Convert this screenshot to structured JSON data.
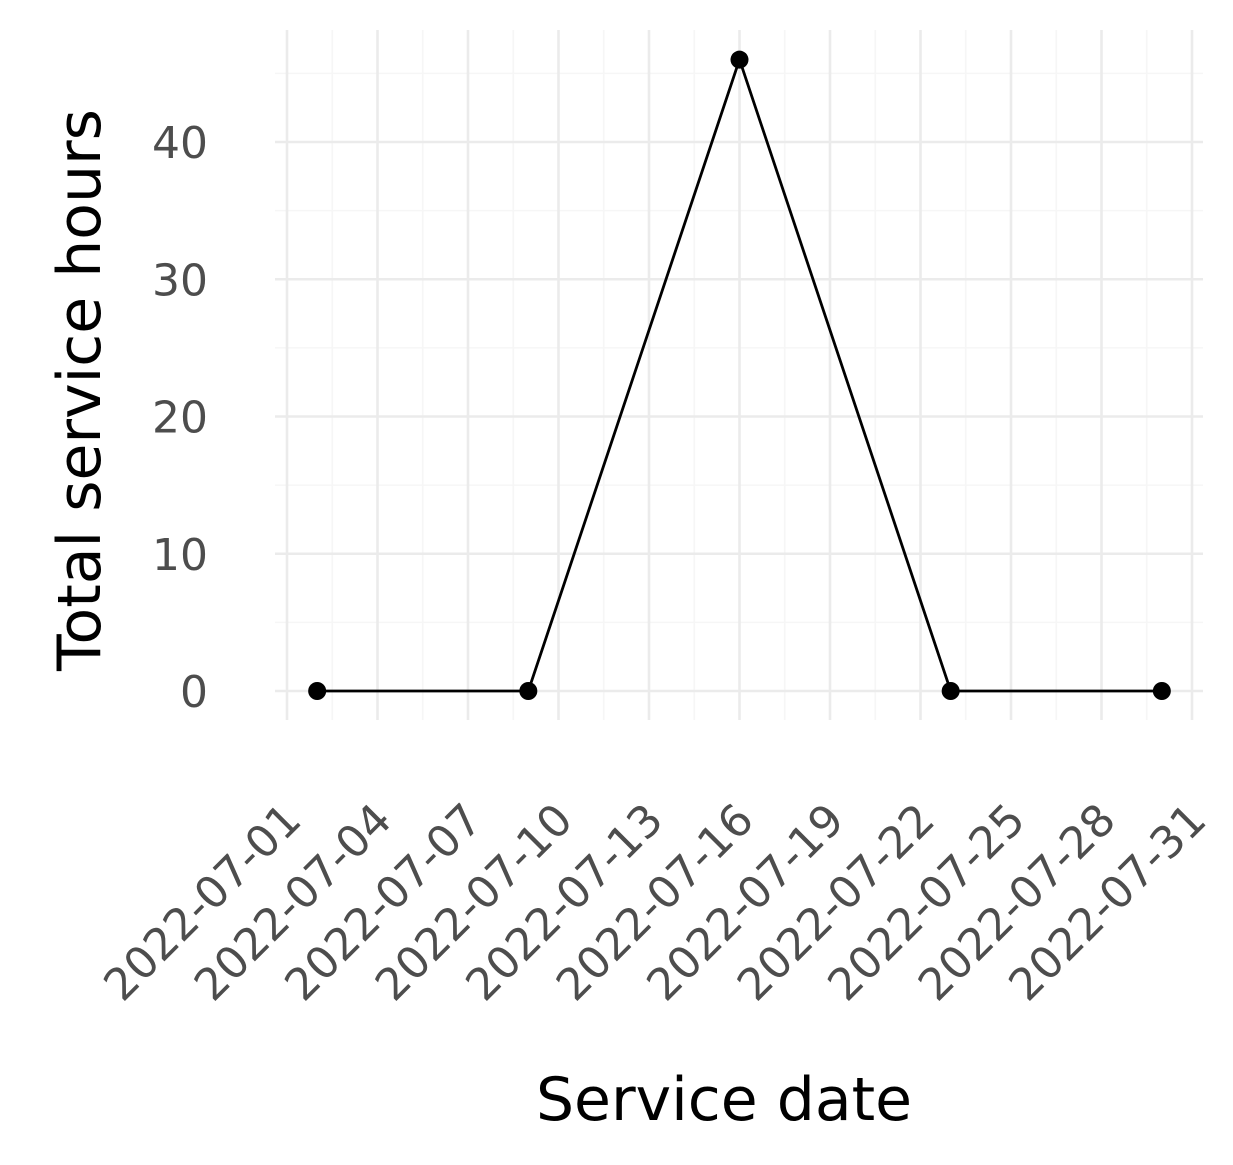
{
  "chart_data": {
    "type": "line",
    "title": "",
    "xlabel": "Service date",
    "ylabel": "Total service hours",
    "x_ticks": [
      "2022-07-01",
      "2022-07-04",
      "2022-07-07",
      "2022-07-10",
      "2022-07-13",
      "2022-07-16",
      "2022-07-19",
      "2022-07-22",
      "2022-07-25",
      "2022-07-28",
      "2022-07-31"
    ],
    "y_ticks": [
      0,
      10,
      20,
      30,
      40
    ],
    "xlim": [
      "2022-07-01",
      "2022-07-31"
    ],
    "ylim": [
      0,
      46
    ],
    "grid": true,
    "legend": "none",
    "series": [
      {
        "points": [
          {
            "x": "2022-07-02",
            "y": 0
          },
          {
            "x": "2022-07-09",
            "y": 0
          },
          {
            "x": "2022-07-16",
            "y": 46
          },
          {
            "x": "2022-07-23",
            "y": 0
          },
          {
            "x": "2022-07-30",
            "y": 0
          }
        ]
      }
    ]
  }
}
